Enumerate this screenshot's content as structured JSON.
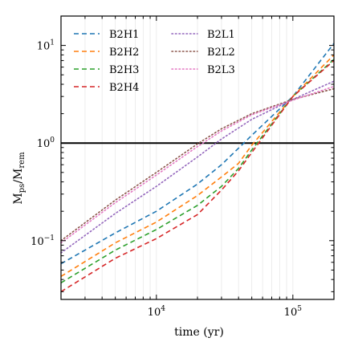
{
  "chart_data": {
    "type": "line",
    "title": "",
    "xlabel": "time (yr)",
    "ylabel": "M_ps/M_rem",
    "ylabel_parts": {
      "main": "M",
      "sub1": "ps",
      "sep": "/M",
      "sub2": "rem"
    },
    "x_scale": "log",
    "y_scale": "log",
    "xlim": [
      2000,
      200000
    ],
    "ylim": [
      0.025,
      20
    ],
    "grid": "vertical minor gridlines",
    "legend_placement": "top-left, two columns",
    "x_major_ticks": [
      {
        "value": 10000,
        "base": "10",
        "exp": "4"
      },
      {
        "value": 100000,
        "base": "10",
        "exp": "5"
      }
    ],
    "y_major_ticks": [
      {
        "value": 0.1,
        "base": "10",
        "exp": "−1"
      },
      {
        "value": 1,
        "base": "10",
        "exp": "0"
      },
      {
        "value": 10,
        "base": "10",
        "exp": "1"
      }
    ],
    "reference_line": {
      "y": 1.0,
      "color": "#000000"
    },
    "series": [
      {
        "name": "B2H1",
        "style": "dashed",
        "color": "#1f77b4",
        "points": [
          [
            2000,
            0.058
          ],
          [
            5000,
            0.12
          ],
          [
            10000,
            0.2
          ],
          [
            20000,
            0.38
          ],
          [
            30000,
            0.6
          ],
          [
            50000,
            1.2
          ],
          [
            100000,
            3.0
          ],
          [
            200000,
            10.5
          ]
        ]
      },
      {
        "name": "B2H2",
        "style": "dashed",
        "color": "#ff7f0e",
        "points": [
          [
            2000,
            0.043
          ],
          [
            5000,
            0.095
          ],
          [
            10000,
            0.155
          ],
          [
            20000,
            0.29
          ],
          [
            30000,
            0.45
          ],
          [
            40000,
            0.62
          ],
          [
            50000,
            0.95
          ],
          [
            100000,
            3.0
          ],
          [
            200000,
            8.0
          ]
        ]
      },
      {
        "name": "B2H3",
        "style": "dashed",
        "color": "#2ca02c",
        "points": [
          [
            2000,
            0.037
          ],
          [
            5000,
            0.08
          ],
          [
            10000,
            0.13
          ],
          [
            20000,
            0.23
          ],
          [
            30000,
            0.36
          ],
          [
            40000,
            0.55
          ],
          [
            50000,
            0.85
          ],
          [
            100000,
            3.0
          ],
          [
            200000,
            7.2
          ]
        ]
      },
      {
        "name": "B2H4",
        "style": "dashed",
        "color": "#d62728",
        "points": [
          [
            2000,
            0.03
          ],
          [
            5000,
            0.066
          ],
          [
            10000,
            0.105
          ],
          [
            20000,
            0.185
          ],
          [
            30000,
            0.33
          ],
          [
            40000,
            0.52
          ],
          [
            50000,
            0.8
          ],
          [
            100000,
            3.0
          ],
          [
            200000,
            7.0
          ]
        ]
      },
      {
        "name": "B2L1",
        "style": "dotted",
        "color": "#9467bd",
        "points": [
          [
            2000,
            0.075
          ],
          [
            5000,
            0.19
          ],
          [
            10000,
            0.36
          ],
          [
            20000,
            0.72
          ],
          [
            30000,
            1.1
          ],
          [
            50000,
            1.75
          ],
          [
            100000,
            2.8
          ],
          [
            200000,
            4.3
          ]
        ]
      },
      {
        "name": "B2L2",
        "style": "dotted",
        "color": "#8c564b",
        "points": [
          [
            2000,
            0.1
          ],
          [
            5000,
            0.26
          ],
          [
            10000,
            0.5
          ],
          [
            20000,
            0.98
          ],
          [
            30000,
            1.4
          ],
          [
            50000,
            2.0
          ],
          [
            100000,
            2.8
          ],
          [
            200000,
            3.6
          ]
        ]
      },
      {
        "name": "B2L3",
        "style": "dotted",
        "color": "#e377c2",
        "points": [
          [
            2000,
            0.095
          ],
          [
            5000,
            0.245
          ],
          [
            10000,
            0.47
          ],
          [
            20000,
            0.92
          ],
          [
            30000,
            1.33
          ],
          [
            50000,
            1.95
          ],
          [
            100000,
            2.75
          ],
          [
            200000,
            3.8
          ]
        ]
      }
    ]
  }
}
